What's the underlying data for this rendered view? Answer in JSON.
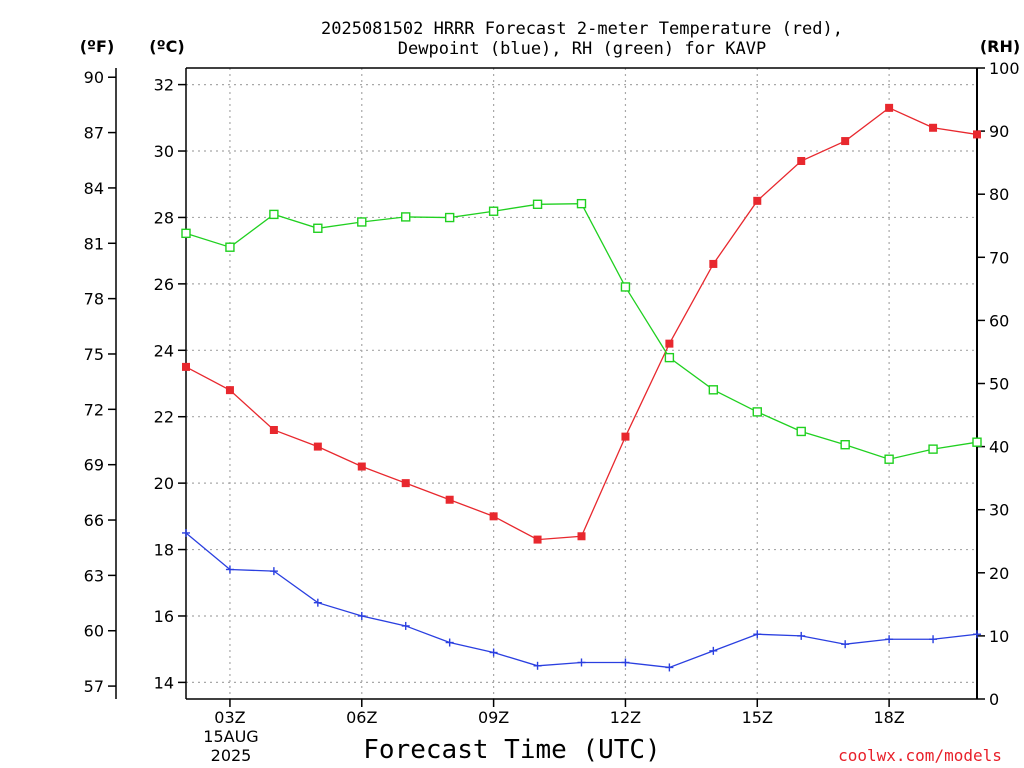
{
  "header": {
    "title_line1": "2025081502 HRRR Forecast 2-meter Temperature (red),",
    "title_line2": "Dewpoint (blue), RH (green) for KAVP",
    "unit_f": "(ºF)",
    "unit_c": "(ºC)",
    "unit_rh": "(RH)"
  },
  "footer": {
    "xlabel": "Forecast Time (UTC)",
    "credit": "coolwx.com/models",
    "date_line1": "15AUG",
    "date_line2": "2025"
  },
  "colors": {
    "temperature": "#e8282e",
    "dewpoint": "#2a3fe0",
    "rh": "#20d020",
    "grid": "#a8a8a8"
  },
  "chart_data": {
    "type": "line",
    "title": "2025081502 HRRR Forecast 2-meter Temperature (red), Dewpoint (blue), RH (green) for KAVP",
    "xlabel": "Forecast Time (UTC)",
    "x": [
      "02Z",
      "03Z",
      "04Z",
      "05Z",
      "06Z",
      "07Z",
      "08Z",
      "09Z",
      "10Z",
      "11Z",
      "12Z",
      "13Z",
      "14Z",
      "15Z",
      "16Z",
      "17Z",
      "18Z",
      "19Z",
      "20Z"
    ],
    "x_tick_labels": [
      "03Z",
      "06Z",
      "09Z",
      "12Z",
      "15Z",
      "18Z"
    ],
    "x_tick_indices": [
      1,
      4,
      7,
      10,
      13,
      16
    ],
    "y_left_celsius": {
      "ylim": [
        13.5,
        32.5
      ],
      "ticks": [
        14,
        16,
        18,
        20,
        22,
        24,
        26,
        28,
        30,
        32
      ]
    },
    "y_left_fahrenheit": {
      "ticks": [
        57,
        60,
        63,
        66,
        69,
        72,
        75,
        78,
        81,
        84,
        87,
        90
      ]
    },
    "y_right_rh": {
      "ylim": [
        0,
        100
      ],
      "ticks": [
        0,
        10,
        20,
        30,
        40,
        50,
        60,
        70,
        80,
        90,
        100
      ]
    },
    "grid": true,
    "series": [
      {
        "name": "Temperature",
        "axis": "celsius",
        "marker": "filled-square",
        "values": [
          23.5,
          22.8,
          21.6,
          21.1,
          20.5,
          20.0,
          19.5,
          19.0,
          18.3,
          18.4,
          21.4,
          24.2,
          26.6,
          28.5,
          29.7,
          30.3,
          31.3,
          30.7,
          30.5
        ]
      },
      {
        "name": "Dewpoint",
        "axis": "celsius",
        "marker": "plus",
        "values": [
          18.5,
          17.4,
          17.35,
          16.4,
          16.0,
          15.7,
          15.2,
          14.9,
          14.5,
          14.6,
          14.6,
          14.45,
          14.95,
          15.45,
          15.4,
          15.15,
          15.3,
          15.3,
          15.45
        ]
      },
      {
        "name": "RH",
        "axis": "rh",
        "marker": "open-square",
        "values": [
          73.8,
          71.6,
          76.8,
          74.6,
          75.6,
          76.4,
          76.3,
          77.3,
          78.4,
          78.5,
          65.3,
          54.1,
          49.0,
          45.5,
          42.4,
          40.3,
          38.0,
          39.6,
          40.7
        ]
      }
    ]
  }
}
